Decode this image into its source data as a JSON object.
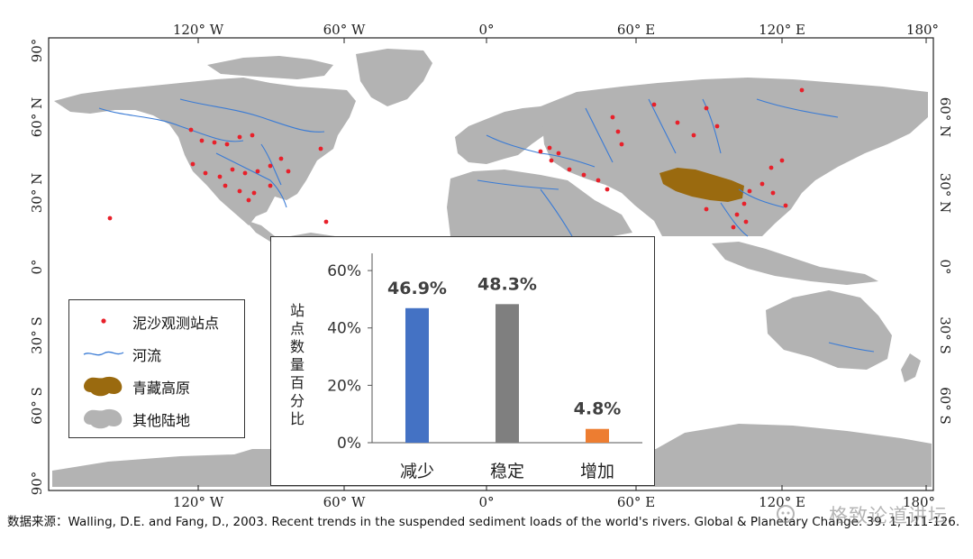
{
  "map": {
    "top_ticks": [
      "120° W",
      "60° W",
      "0°",
      "60° E",
      "120° E",
      "180°"
    ],
    "bottom_ticks": [
      "120° W",
      "60° W",
      "0°",
      "60° E",
      "120° E",
      "180°"
    ],
    "left_ticks": [
      "90°",
      "60° N",
      "30° N",
      "0°",
      "30° S",
      "60° S",
      "90°"
    ],
    "right_ticks": [
      "60° N",
      "30° N",
      "0°",
      "30° S",
      "60° S"
    ],
    "colors": {
      "land": "#b3b3b3",
      "river": "#3a7bd5",
      "station": "#e8202a",
      "plateau": "#9a6a0f"
    }
  },
  "legend": {
    "items": [
      {
        "label": "泥沙观测站点",
        "icon": "red-dot-icon"
      },
      {
        "label": "河流",
        "icon": "river-line-icon"
      },
      {
        "label": "青藏高原",
        "icon": "plateau-blob-icon"
      },
      {
        "label": "其他陆地",
        "icon": "land-blob-icon"
      }
    ]
  },
  "chart_data": {
    "type": "bar",
    "categories": [
      "减少",
      "稳定",
      "增加"
    ],
    "values": [
      46.9,
      48.3,
      4.8
    ],
    "value_labels": [
      "46.9%",
      "48.3%",
      "4.8%"
    ],
    "colors": [
      "#4472c4",
      "#7f7f7f",
      "#ed7d31"
    ],
    "ylabel": "站点数量百分比",
    "yticks": [
      "0%",
      "20%",
      "40%",
      "60%"
    ],
    "ytick_values": [
      0,
      20,
      40,
      60
    ],
    "ylim": [
      0,
      66
    ]
  },
  "source": {
    "text": "数据来源：Walling, D.E. and Fang, D., 2003. Recent trends in the suspended sediment loads of the world's rivers. Global & Planetary Change. 39. 1, 111-126."
  },
  "watermark": {
    "text": "格致论道讲坛"
  }
}
